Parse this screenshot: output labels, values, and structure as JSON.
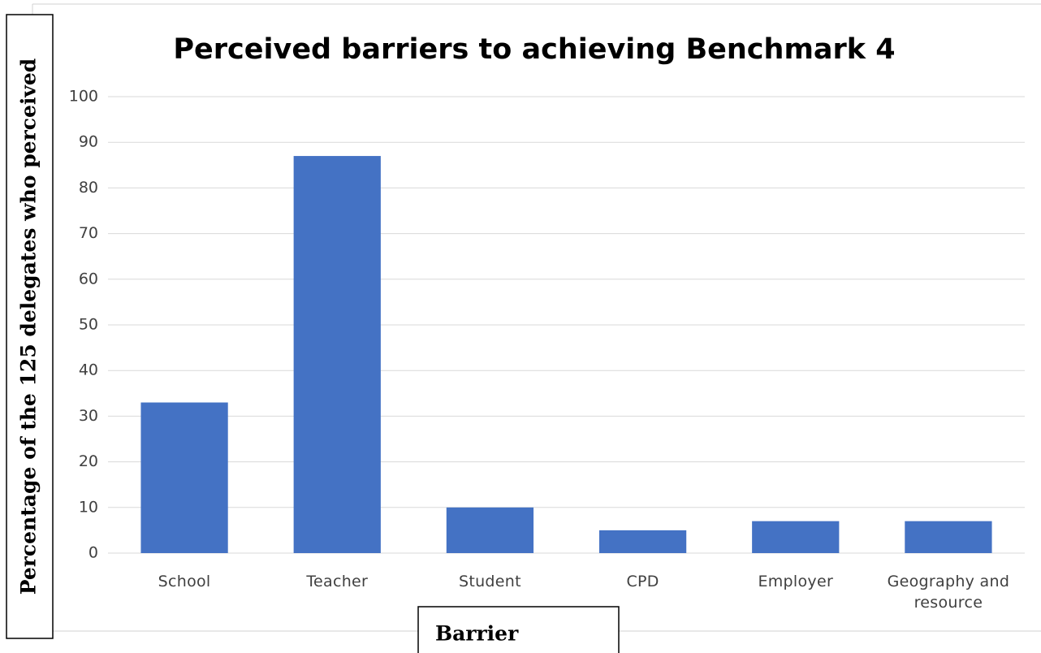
{
  "chart_data": {
    "type": "bar",
    "title": "Perceived barriers to achieving Benchmark 4",
    "y_label": "Percentage of the 125 delegates who perceived",
    "x_label": "Barrier",
    "categories": [
      "School",
      "Teacher",
      "Student",
      "CPD",
      "Employer",
      "Geography and resource"
    ],
    "values": [
      33,
      87,
      10,
      5,
      7,
      7
    ],
    "color": "#4472c4",
    "ylim": [
      0,
      100
    ],
    "yticks": [
      0,
      10,
      20,
      30,
      40,
      50,
      60,
      70,
      80,
      90,
      100
    ],
    "grid": true
  }
}
